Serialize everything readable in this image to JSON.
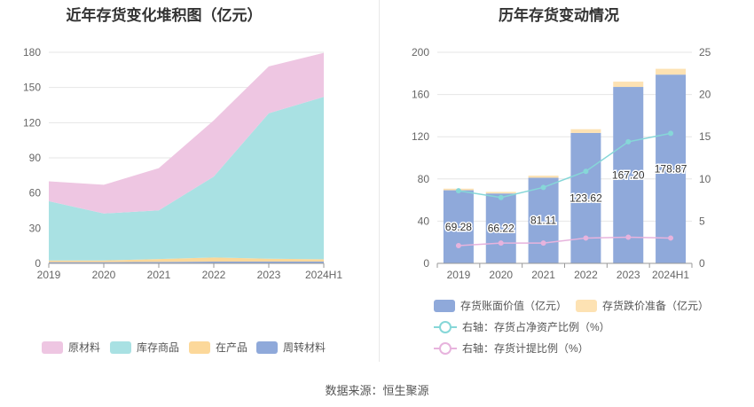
{
  "left_title": "近年存货变化堆积图（亿元）",
  "right_title": "历年存货变动情况",
  "source_label": "数据来源：恒生聚源",
  "chart_data": [
    {
      "type": "area",
      "stacked": true,
      "categories": [
        "2019",
        "2020",
        "2021",
        "2022",
        "2023",
        "2024H1"
      ],
      "ylim": [
        0,
        180
      ],
      "yticks": [
        0,
        30,
        60,
        90,
        120,
        150,
        180
      ],
      "grid": true,
      "legend_position": "bottom",
      "series": [
        {
          "name": "周转材料",
          "color": "#8fa9da",
          "values": [
            1.0,
            1.0,
            1.2,
            1.5,
            1.5,
            1.5
          ]
        },
        {
          "name": "在产品",
          "color": "#fcd89a",
          "values": [
            1.5,
            1.5,
            2.5,
            3.5,
            2.5,
            2.0
          ]
        },
        {
          "name": "库存商品",
          "color": "#a9e1e3",
          "values": [
            50.5,
            40.0,
            41.5,
            69.0,
            124.0,
            138.5
          ]
        },
        {
          "name": "原材料",
          "color": "#eec6e2",
          "values": [
            17.0,
            24.5,
            36.0,
            48.0,
            40.0,
            37.5
          ]
        }
      ],
      "legend_order": [
        "原材料",
        "库存商品",
        "在产品",
        "周转材料"
      ]
    },
    {
      "type": "bar",
      "stacked": true,
      "categories": [
        "2019",
        "2020",
        "2021",
        "2022",
        "2023",
        "2024H1"
      ],
      "ylim": [
        0,
        200
      ],
      "yticks": [
        0,
        40,
        80,
        120,
        160,
        200
      ],
      "y2lim": [
        0,
        25
      ],
      "y2ticks": [
        0,
        5,
        10,
        15,
        20,
        25
      ],
      "grid": true,
      "legend_position": "bottom",
      "series": [
        {
          "name": "存货账面价值（亿元）",
          "color": "#8fa9da",
          "values": [
            69.28,
            66.22,
            81.11,
            123.62,
            167.2,
            178.87
          ],
          "labels": [
            "69.28",
            "66.22",
            "81.11",
            "123.62",
            "167.20",
            "178.87"
          ]
        },
        {
          "name": "存货跌价准备（亿元）",
          "color": "#fde2b3",
          "values": [
            1.5,
            1.5,
            2.0,
            3.5,
            5.0,
            5.5
          ]
        }
      ],
      "line_series": [
        {
          "name": "右轴：存货占净资产比例（%）",
          "color": "#86d7d8",
          "axis": "right",
          "values": [
            8.6,
            7.8,
            9.0,
            10.9,
            14.4,
            15.4
          ]
        },
        {
          "name": "右轴：存货计提比例（%）",
          "color": "#e7b3dd",
          "axis": "right",
          "values": [
            2.1,
            2.4,
            2.4,
            3.0,
            3.1,
            3.0
          ]
        }
      ]
    }
  ]
}
